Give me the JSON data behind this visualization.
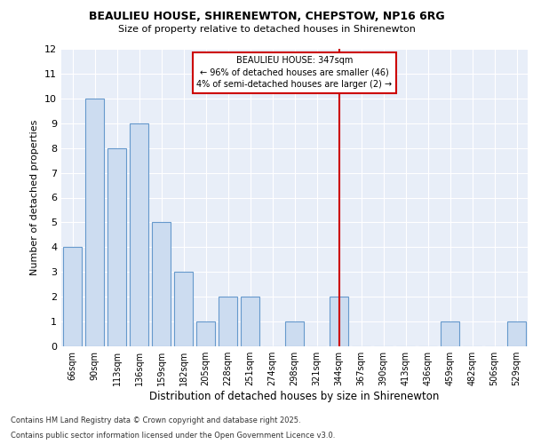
{
  "title1": "BEAULIEU HOUSE, SHIRENEWTON, CHEPSTOW, NP16 6RG",
  "title2": "Size of property relative to detached houses in Shirenewton",
  "xlabel": "Distribution of detached houses by size in Shirenewton",
  "ylabel": "Number of detached properties",
  "categories": [
    "66sqm",
    "90sqm",
    "113sqm",
    "136sqm",
    "159sqm",
    "182sqm",
    "205sqm",
    "228sqm",
    "251sqm",
    "274sqm",
    "298sqm",
    "321sqm",
    "344sqm",
    "367sqm",
    "390sqm",
    "413sqm",
    "436sqm",
    "459sqm",
    "482sqm",
    "506sqm",
    "529sqm"
  ],
  "values": [
    4,
    10,
    8,
    9,
    5,
    3,
    1,
    2,
    2,
    0,
    1,
    0,
    2,
    0,
    0,
    0,
    0,
    1,
    0,
    0,
    1
  ],
  "bar_color": "#ccdcf0",
  "bar_edge_color": "#6699cc",
  "vline_index": 12,
  "vline_color": "#cc0000",
  "annotation_title": "BEAULIEU HOUSE: 347sqm",
  "annotation_line1": "← 96% of detached houses are smaller (46)",
  "annotation_line2": "4% of semi-detached houses are larger (2) →",
  "ylim": [
    0,
    12
  ],
  "yticks": [
    0,
    1,
    2,
    3,
    4,
    5,
    6,
    7,
    8,
    9,
    10,
    11,
    12
  ],
  "bg_color": "#e8eef8",
  "footer1": "Contains HM Land Registry data © Crown copyright and database right 2025.",
  "footer2": "Contains public sector information licensed under the Open Government Licence v3.0."
}
